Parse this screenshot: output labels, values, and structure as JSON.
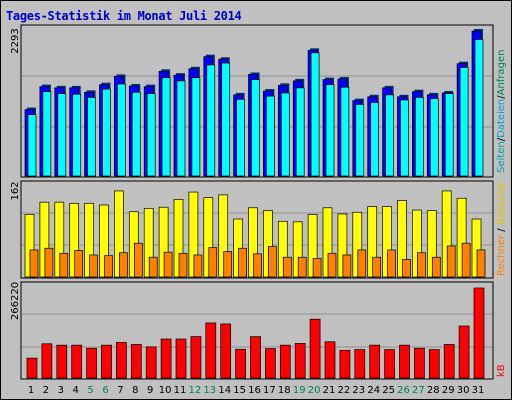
{
  "title": "Tages-Statistik im Monat Juli 2014",
  "colors": {
    "background": "#c0c0c0",
    "panel_bg": "#c0c0c0",
    "grid": "#909090",
    "title": "#0000cc",
    "hits": "#0000ff",
    "files": "#00ffff",
    "pages": "#00b0c0",
    "visits": "#ffff00",
    "sites": "#ff8000",
    "kbytes": "#ff0000",
    "weekend": "#008060",
    "weekday": "#000000"
  },
  "chart_data": [
    {
      "type": "bar",
      "panel": "top",
      "ylabel_max": "2293",
      "ymax": 2293,
      "categories": [
        "1",
        "2",
        "3",
        "4",
        "5",
        "6",
        "7",
        "8",
        "9",
        "10",
        "11",
        "12",
        "13",
        "14",
        "15",
        "16",
        "17",
        "18",
        "19",
        "20",
        "21",
        "22",
        "23",
        "24",
        "25",
        "26",
        "27",
        "28",
        "29",
        "30",
        "31"
      ],
      "legend": [
        "Anfragen",
        "/",
        "Dateien",
        "/",
        "Seiten"
      ],
      "series": [
        {
          "name": "Anfragen",
          "values": [
            1060,
            1420,
            1400,
            1400,
            1330,
            1450,
            1580,
            1430,
            1420,
            1660,
            1600,
            1700,
            1890,
            1850,
            1290,
            1610,
            1350,
            1440,
            1510,
            1990,
            1530,
            1540,
            1200,
            1260,
            1400,
            1260,
            1340,
            1290,
            1320,
            1780,
            2293
          ]
        },
        {
          "name": "Dateien",
          "values": [
            980,
            1340,
            1310,
            1300,
            1250,
            1380,
            1460,
            1330,
            1310,
            1560,
            1510,
            1560,
            1760,
            1790,
            1220,
            1530,
            1270,
            1320,
            1400,
            1950,
            1450,
            1410,
            1140,
            1170,
            1290,
            1210,
            1250,
            1230,
            1310,
            1720,
            2160
          ]
        }
      ]
    },
    {
      "type": "bar",
      "panel": "middle",
      "ylabel_max": "162",
      "ymax": 162,
      "categories": [
        "1",
        "2",
        "3",
        "4",
        "5",
        "6",
        "7",
        "8",
        "9",
        "10",
        "11",
        "12",
        "13",
        "14",
        "15",
        "16",
        "17",
        "18",
        "19",
        "20",
        "21",
        "22",
        "23",
        "24",
        "25",
        "26",
        "27",
        "28",
        "29",
        "30",
        "31"
      ],
      "legend": [
        "Besuche",
        "/",
        "Rechner"
      ],
      "series": [
        {
          "name": "Besuche",
          "values": [
            113,
            135,
            135,
            133,
            133,
            130,
            155,
            118,
            124,
            126,
            140,
            153,
            143,
            148,
            105,
            125,
            120,
            101,
            100,
            113,
            125,
            114,
            117,
            127,
            127,
            138,
            121,
            120,
            155,
            142,
            105
          ]
        },
        {
          "name": "Rechner",
          "values": [
            50,
            53,
            44,
            49,
            41,
            40,
            45,
            62,
            37,
            46,
            44,
            41,
            54,
            47,
            53,
            43,
            56,
            37,
            37,
            35,
            44,
            41,
            50,
            37,
            50,
            33,
            45,
            37,
            57,
            62,
            50
          ]
        }
      ]
    },
    {
      "type": "bar",
      "panel": "bottom",
      "ylabel_max": "266220",
      "ymax": 266220,
      "categories": [
        "1",
        "2",
        "3",
        "4",
        "5",
        "6",
        "7",
        "8",
        "9",
        "10",
        "11",
        "12",
        "13",
        "14",
        "15",
        "16",
        "17",
        "18",
        "19",
        "20",
        "21",
        "22",
        "23",
        "24",
        "25",
        "26",
        "27",
        "28",
        "29",
        "30",
        "31"
      ],
      "legend": [
        "kB"
      ],
      "series": [
        {
          "name": "kB",
          "values": [
            61000,
            103000,
            99000,
            99000,
            90000,
            99000,
            107000,
            101000,
            94000,
            117000,
            117000,
            124000,
            164000,
            161000,
            87000,
            124000,
            89000,
            99000,
            104000,
            175000,
            109000,
            84000,
            86000,
            99000,
            86000,
            99000,
            90000,
            86000,
            101000,
            155000,
            266220
          ]
        }
      ]
    }
  ],
  "x_labels": [
    {
      "text": "1",
      "weekend": false
    },
    {
      "text": "2",
      "weekend": false
    },
    {
      "text": "3",
      "weekend": false
    },
    {
      "text": "4",
      "weekend": false
    },
    {
      "text": "5",
      "weekend": true
    },
    {
      "text": "6",
      "weekend": true
    },
    {
      "text": "7",
      "weekend": false
    },
    {
      "text": "8",
      "weekend": false
    },
    {
      "text": "9",
      "weekend": false
    },
    {
      "text": "10",
      "weekend": false
    },
    {
      "text": "11",
      "weekend": false
    },
    {
      "text": "12",
      "weekend": true
    },
    {
      "text": "13",
      "weekend": true
    },
    {
      "text": "14",
      "weekend": false
    },
    {
      "text": "15",
      "weekend": false
    },
    {
      "text": "16",
      "weekend": false
    },
    {
      "text": "17",
      "weekend": false
    },
    {
      "text": "18",
      "weekend": false
    },
    {
      "text": "19",
      "weekend": true
    },
    {
      "text": "20",
      "weekend": true
    },
    {
      "text": "21",
      "weekend": false
    },
    {
      "text": "22",
      "weekend": false
    },
    {
      "text": "23",
      "weekend": false
    },
    {
      "text": "24",
      "weekend": false
    },
    {
      "text": "25",
      "weekend": false
    },
    {
      "text": "26",
      "weekend": true
    },
    {
      "text": "27",
      "weekend": true
    },
    {
      "text": "28",
      "weekend": false
    },
    {
      "text": "29",
      "weekend": false
    },
    {
      "text": "30",
      "weekend": false
    },
    {
      "text": "31",
      "weekend": false
    }
  ]
}
